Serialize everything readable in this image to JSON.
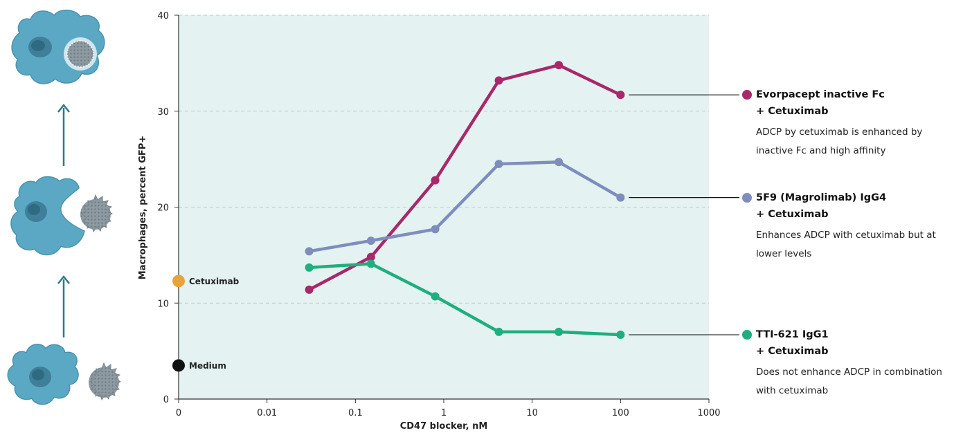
{
  "chart_data": {
    "type": "line",
    "xlabel": "CD47 blocker, nM",
    "ylabel": "Macrophages, percent GFP+",
    "xscale": "log",
    "xlim": [
      0.001,
      1000
    ],
    "ylim": [
      0,
      40
    ],
    "x_ticks": [
      "0",
      "0.01",
      "0.1",
      "1",
      "10",
      "100",
      "1000"
    ],
    "y_ticks": [
      "0",
      "10",
      "20",
      "30",
      "40"
    ],
    "grid": "horizontal dashed",
    "legend_position": "right",
    "x": [
      0.03,
      0.15,
      0.8,
      4.2,
      20,
      100
    ],
    "series": [
      {
        "name": "Evorpacept inactive Fc",
        "name_line2": "+ Cetuximab",
        "description": "ADCP by cetuximab is enhanced by inactive Fc and high affinity",
        "color": "#a8286b",
        "values": [
          11.4,
          14.8,
          22.8,
          33.2,
          34.8,
          31.7
        ]
      },
      {
        "name": "5F9 (Magrolimab) IgG4",
        "name_line2": "+ Cetuximab",
        "description": "Enhances ADCP with cetuximab  but at lower levels",
        "color": "#7f8dbd",
        "values": [
          15.4,
          16.5,
          17.7,
          24.5,
          24.7,
          21.0
        ]
      },
      {
        "name": "TTI-621 IgG1",
        "name_line2": "+ Cetuximab",
        "description": "Does not enhance ADCP  in combination with cetuximab",
        "color": "#1fae7e",
        "values": [
          13.7,
          14.1,
          10.7,
          7.0,
          7.0,
          6.7
        ]
      }
    ],
    "reference_points": [
      {
        "label": "Cetuximab",
        "x": "0",
        "value": 12.3,
        "color": "#e8a33a"
      },
      {
        "label": "Medium",
        "x": "0",
        "value": 3.5,
        "color": "#111111"
      }
    ]
  },
  "colors": {
    "plot_background": "#e4f2f1",
    "grid": "#b9c9c9",
    "cell_body": "#5ba8c4",
    "cell_nucleus": "#3f7f9a",
    "tumor_cell": "#8d9aa1",
    "arrow": "#2d7a88"
  },
  "icons": [
    "phagocytosed-cell-icon",
    "engaging-macrophage-icon",
    "resting-macrophage-icon",
    "up-arrow-icon"
  ]
}
